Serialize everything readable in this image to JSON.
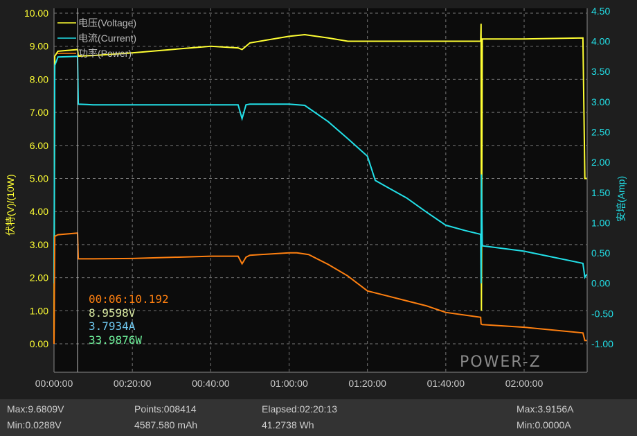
{
  "chart_data": {
    "type": "line",
    "xlabel": "",
    "ylabel_left": "伏特(V)/(10W)",
    "ylabel_right": "安培(Amp)",
    "xlim_minutes": [
      0,
      136
    ],
    "x_ticks": [
      "00:00:00",
      "00:20:00",
      "00:40:00",
      "01:00:00",
      "01:20:00",
      "01:40:00",
      "02:00:00"
    ],
    "y_left_ticks": [
      "10.00",
      "9.00",
      "8.00",
      "7.00",
      "6.00",
      "5.00",
      "4.00",
      "3.00",
      "2.00",
      "1.00",
      "0.00"
    ],
    "y_right_ticks": [
      "4.50",
      "4.00",
      "3.50",
      "3.00",
      "2.50",
      "2.00",
      "1.50",
      "1.00",
      "0.50",
      "0.00",
      "-0.50",
      "-1.00"
    ],
    "ylim_left": [
      -0.87,
      10.1
    ],
    "ylim_right": [
      -1.0,
      4.5
    ],
    "grid": true,
    "legend_placement": "top-left",
    "series": [
      {
        "name": "电压(Voltage)",
        "axis": "left",
        "color": "#ffff33",
        "x": [
          0,
          0.2,
          1,
          6,
          6.2,
          10,
          20,
          40,
          47,
          48,
          50,
          60,
          64,
          70,
          75,
          80,
          100,
          108.9,
          109,
          109.1,
          109.3,
          120,
          135,
          135.5,
          136
        ],
        "y": [
          0,
          8.7,
          8.85,
          8.9,
          8.7,
          8.72,
          8.8,
          9.0,
          8.95,
          8.9,
          9.1,
          9.3,
          9.35,
          9.25,
          9.15,
          9.15,
          9.15,
          9.15,
          9.68,
          1.0,
          9.22,
          9.22,
          9.25,
          5.0,
          5.0
        ]
      },
      {
        "name": "电流(Current)",
        "axis": "right",
        "color": "#22e0e8",
        "x": [
          0,
          0.2,
          1,
          6,
          6.2,
          10,
          20,
          40,
          47,
          48,
          49,
          50,
          60,
          64,
          70,
          75,
          80,
          82,
          85,
          90,
          95,
          100,
          105,
          108.9,
          109,
          109.1,
          109.3,
          120,
          135,
          135.5,
          136
        ],
        "y": [
          0,
          3.6,
          3.74,
          3.75,
          2.96,
          2.95,
          2.95,
          2.95,
          2.95,
          2.72,
          2.95,
          2.96,
          2.96,
          2.94,
          2.67,
          2.39,
          2.1,
          1.7,
          1.59,
          1.41,
          1.18,
          0.96,
          0.87,
          0.81,
          0.0,
          1.8,
          0.62,
          0.53,
          0.33,
          0.1,
          0.15
        ]
      },
      {
        "name": "功率(Power)",
        "axis": "left",
        "color": "#ff8010",
        "x": [
          0,
          0.2,
          1,
          6,
          6.2,
          10,
          20,
          40,
          47,
          48,
          49,
          50,
          60,
          62,
          65,
          70,
          75,
          80,
          85,
          90,
          95,
          100,
          108.9,
          109,
          109.3,
          120,
          135,
          135.5,
          136
        ],
        "y": [
          0,
          3.25,
          3.3,
          3.35,
          2.57,
          2.57,
          2.58,
          2.65,
          2.65,
          2.42,
          2.62,
          2.68,
          2.75,
          2.75,
          2.7,
          2.4,
          2.05,
          1.6,
          1.45,
          1.3,
          1.15,
          0.95,
          0.8,
          0.6,
          0.58,
          0.5,
          0.33,
          0.1,
          0.1
        ]
      }
    ],
    "cursor": {
      "time": "00:06:10.192",
      "voltage": "8.9598V",
      "current": "3.7934A",
      "power": "33.9876W"
    }
  },
  "colors": {
    "voltage": "#ffff33",
    "current": "#22e0e8",
    "power": "#ff8010",
    "background": "#0c0c0c",
    "stats_bar": "#333333"
  },
  "logo": "POWER-Z",
  "stats": {
    "max_v": "Max:9.6809V",
    "min_v": "Min:0.0288V",
    "points": "Points:008414",
    "capacity": "4587.580 mAh",
    "elapsed": "Elapsed:02:20:13",
    "energy": "41.2738 Wh",
    "max_a": "Max:3.9156A",
    "min_a": "Min:0.0000A"
  }
}
